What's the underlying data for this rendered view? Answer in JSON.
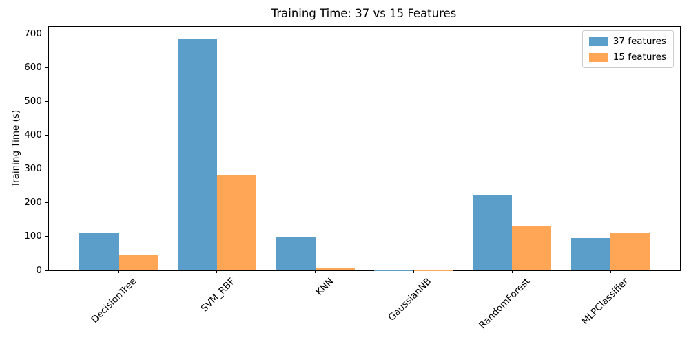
{
  "figure": {
    "background": "#ffffff",
    "text_color": "#000000",
    "spine_color": "#000000"
  },
  "chart_data": {
    "type": "bar",
    "title": "Training Time: 37 vs 15 Features",
    "xlabel": "",
    "ylabel": "Training Time (s)",
    "categories": [
      "DecisionTree",
      "SVM_RBF",
      "KNN",
      "GaussianNB",
      "RandomForest",
      "MLPClassifier"
    ],
    "series": [
      {
        "name": "37 features",
        "color": "#5b9ec9",
        "values": [
          110,
          688,
          100,
          0.5,
          224,
          96
        ]
      },
      {
        "name": "15 features",
        "color": "#ffa556",
        "values": [
          46,
          283,
          9,
          0.3,
          133,
          110
        ]
      }
    ],
    "ylim": [
      0,
      722
    ],
    "yticks": [
      0,
      100,
      200,
      300,
      400,
      500,
      600,
      700
    ],
    "grid": false,
    "legend_position": "upper right",
    "bar_width": 0.4,
    "x_tick_rotation": 45
  }
}
